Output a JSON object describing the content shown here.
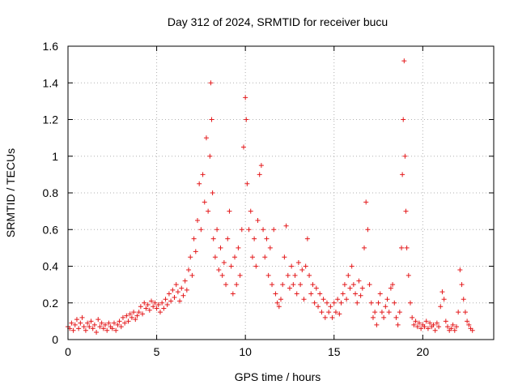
{
  "chart_data": {
    "type": "scatter",
    "title": "Day 312 of 2024, SRMTID for receiver bucu",
    "xlabel": "GPS time / hours",
    "ylabel": "SRMTID / TECUs",
    "xlim": [
      0,
      24
    ],
    "ylim": [
      0,
      1.6
    ],
    "x_ticks": [
      0,
      5,
      10,
      15,
      20
    ],
    "x_tick_labels": [
      "0",
      "5",
      "10",
      "15",
      "20"
    ],
    "y_ticks": [
      0,
      0.2,
      0.4,
      0.6,
      0.8,
      1,
      1.2,
      1.4,
      1.6
    ],
    "y_tick_labels": [
      "0",
      "0.2",
      "0.4",
      "0.6",
      "0.8",
      "1",
      "1.2",
      "1.4",
      "1.6"
    ],
    "grid": true,
    "marker": "+",
    "series": [
      {
        "name": "SRMTID",
        "color": "#e41a1c",
        "points": [
          [
            0.0,
            0.07
          ],
          [
            0.1,
            0.06
          ],
          [
            0.2,
            0.09
          ],
          [
            0.3,
            0.05
          ],
          [
            0.4,
            0.08
          ],
          [
            0.5,
            0.11
          ],
          [
            0.6,
            0.06
          ],
          [
            0.7,
            0.09
          ],
          [
            0.8,
            0.12
          ],
          [
            0.9,
            0.07
          ],
          [
            1.0,
            0.05
          ],
          [
            1.1,
            0.09
          ],
          [
            1.2,
            0.07
          ],
          [
            1.3,
            0.1
          ],
          [
            1.4,
            0.06
          ],
          [
            1.5,
            0.08
          ],
          [
            1.6,
            0.04
          ],
          [
            1.7,
            0.11
          ],
          [
            1.8,
            0.07
          ],
          [
            1.9,
            0.09
          ],
          [
            2.0,
            0.06
          ],
          [
            2.1,
            0.08
          ],
          [
            2.2,
            0.05
          ],
          [
            2.3,
            0.09
          ],
          [
            2.4,
            0.07
          ],
          [
            2.5,
            0.06
          ],
          [
            2.6,
            0.09
          ],
          [
            2.7,
            0.05
          ],
          [
            2.8,
            0.08
          ],
          [
            2.9,
            0.1
          ],
          [
            3.0,
            0.07
          ],
          [
            3.1,
            0.12
          ],
          [
            3.2,
            0.09
          ],
          [
            3.3,
            0.13
          ],
          [
            3.4,
            0.1
          ],
          [
            3.5,
            0.14
          ],
          [
            3.6,
            0.12
          ],
          [
            3.7,
            0.15
          ],
          [
            3.8,
            0.11
          ],
          [
            3.9,
            0.13
          ],
          [
            4.0,
            0.15
          ],
          [
            4.1,
            0.18
          ],
          [
            4.2,
            0.14
          ],
          [
            4.3,
            0.2
          ],
          [
            4.4,
            0.17
          ],
          [
            4.5,
            0.19
          ],
          [
            4.6,
            0.16
          ],
          [
            4.7,
            0.21
          ],
          [
            4.8,
            0.18
          ],
          [
            4.9,
            0.2
          ],
          [
            5.0,
            0.17
          ],
          [
            5.1,
            0.19
          ],
          [
            5.2,
            0.15
          ],
          [
            5.3,
            0.2
          ],
          [
            5.4,
            0.17
          ],
          [
            5.5,
            0.22
          ],
          [
            5.6,
            0.19
          ],
          [
            5.7,
            0.25
          ],
          [
            5.8,
            0.21
          ],
          [
            5.9,
            0.27
          ],
          [
            6.0,
            0.23
          ],
          [
            6.1,
            0.3
          ],
          [
            6.2,
            0.26
          ],
          [
            6.3,
            0.21
          ],
          [
            6.4,
            0.28
          ],
          [
            6.5,
            0.24
          ],
          [
            6.6,
            0.32
          ],
          [
            6.7,
            0.27
          ],
          [
            6.8,
            0.38
          ],
          [
            6.9,
            0.45
          ],
          [
            7.0,
            0.35
          ],
          [
            7.1,
            0.55
          ],
          [
            7.2,
            0.48
          ],
          [
            7.3,
            0.65
          ],
          [
            7.4,
            0.85
          ],
          [
            7.5,
            0.6
          ],
          [
            7.6,
            0.9
          ],
          [
            7.7,
            0.75
          ],
          [
            7.8,
            1.1
          ],
          [
            7.9,
            0.7
          ],
          [
            8.0,
            1.0
          ],
          [
            8.05,
            1.4
          ],
          [
            8.1,
            1.2
          ],
          [
            8.15,
            0.8
          ],
          [
            8.2,
            0.55
          ],
          [
            8.3,
            0.45
          ],
          [
            8.4,
            0.6
          ],
          [
            8.5,
            0.38
          ],
          [
            8.6,
            0.5
          ],
          [
            8.7,
            0.35
          ],
          [
            8.8,
            0.42
          ],
          [
            8.9,
            0.3
          ],
          [
            9.0,
            0.55
          ],
          [
            9.1,
            0.7
          ],
          [
            9.2,
            0.4
          ],
          [
            9.3,
            0.25
          ],
          [
            9.4,
            0.45
          ],
          [
            9.5,
            0.3
          ],
          [
            9.6,
            0.5
          ],
          [
            9.7,
            0.35
          ],
          [
            9.8,
            0.6
          ],
          [
            9.9,
            1.05
          ],
          [
            10.0,
            1.32
          ],
          [
            10.05,
            1.2
          ],
          [
            10.1,
            0.85
          ],
          [
            10.2,
            0.6
          ],
          [
            10.3,
            0.7
          ],
          [
            10.4,
            0.45
          ],
          [
            10.5,
            0.55
          ],
          [
            10.6,
            0.4
          ],
          [
            10.7,
            0.65
          ],
          [
            10.8,
            0.9
          ],
          [
            10.9,
            0.95
          ],
          [
            11.0,
            0.6
          ],
          [
            11.1,
            0.45
          ],
          [
            11.2,
            0.55
          ],
          [
            11.3,
            0.35
          ],
          [
            11.4,
            0.5
          ],
          [
            11.5,
            0.3
          ],
          [
            11.6,
            0.6
          ],
          [
            11.7,
            0.25
          ],
          [
            11.8,
            0.2
          ],
          [
            11.9,
            0.18
          ],
          [
            12.0,
            0.22
          ],
          [
            12.1,
            0.3
          ],
          [
            12.2,
            0.45
          ],
          [
            12.3,
            0.62
          ],
          [
            12.4,
            0.35
          ],
          [
            12.5,
            0.28
          ],
          [
            12.6,
            0.4
          ],
          [
            12.7,
            0.3
          ],
          [
            12.8,
            0.35
          ],
          [
            12.9,
            0.25
          ],
          [
            13.0,
            0.42
          ],
          [
            13.1,
            0.3
          ],
          [
            13.2,
            0.38
          ],
          [
            13.3,
            0.22
          ],
          [
            13.4,
            0.4
          ],
          [
            13.5,
            0.55
          ],
          [
            13.6,
            0.35
          ],
          [
            13.7,
            0.25
          ],
          [
            13.8,
            0.3
          ],
          [
            13.9,
            0.2
          ],
          [
            14.0,
            0.28
          ],
          [
            14.1,
            0.18
          ],
          [
            14.2,
            0.25
          ],
          [
            14.3,
            0.15
          ],
          [
            14.4,
            0.22
          ],
          [
            14.5,
            0.12
          ],
          [
            14.6,
            0.2
          ],
          [
            14.7,
            0.15
          ],
          [
            14.8,
            0.18
          ],
          [
            14.9,
            0.12
          ],
          [
            15.0,
            0.2
          ],
          [
            15.1,
            0.15
          ],
          [
            15.2,
            0.22
          ],
          [
            15.3,
            0.14
          ],
          [
            15.4,
            0.2
          ],
          [
            15.5,
            0.25
          ],
          [
            15.6,
            0.3
          ],
          [
            15.7,
            0.22
          ],
          [
            15.8,
            0.35
          ],
          [
            15.9,
            0.28
          ],
          [
            16.0,
            0.4
          ],
          [
            16.1,
            0.3
          ],
          [
            16.2,
            0.25
          ],
          [
            16.3,
            0.2
          ],
          [
            16.4,
            0.32
          ],
          [
            16.5,
            0.24
          ],
          [
            16.6,
            0.28
          ],
          [
            16.7,
            0.5
          ],
          [
            16.8,
            0.75
          ],
          [
            16.9,
            0.6
          ],
          [
            17.0,
            0.3
          ],
          [
            17.1,
            0.2
          ],
          [
            17.2,
            0.12
          ],
          [
            17.3,
            0.15
          ],
          [
            17.4,
            0.08
          ],
          [
            17.5,
            0.2
          ],
          [
            17.6,
            0.25
          ],
          [
            17.7,
            0.15
          ],
          [
            17.8,
            0.12
          ],
          [
            17.9,
            0.18
          ],
          [
            18.0,
            0.22
          ],
          [
            18.1,
            0.15
          ],
          [
            18.2,
            0.28
          ],
          [
            18.3,
            0.3
          ],
          [
            18.4,
            0.2
          ],
          [
            18.5,
            0.12
          ],
          [
            18.6,
            0.08
          ],
          [
            18.7,
            0.15
          ],
          [
            18.8,
            0.5
          ],
          [
            18.85,
            0.9
          ],
          [
            18.9,
            1.2
          ],
          [
            18.95,
            1.52
          ],
          [
            19.0,
            1.0
          ],
          [
            19.05,
            0.7
          ],
          [
            19.1,
            0.5
          ],
          [
            19.2,
            0.35
          ],
          [
            19.3,
            0.2
          ],
          [
            19.4,
            0.12
          ],
          [
            19.5,
            0.08
          ],
          [
            19.6,
            0.1
          ],
          [
            19.7,
            0.07
          ],
          [
            19.8,
            0.09
          ],
          [
            19.9,
            0.06
          ],
          [
            20.0,
            0.08
          ],
          [
            20.1,
            0.07
          ],
          [
            20.2,
            0.1
          ],
          [
            20.3,
            0.06
          ],
          [
            20.4,
            0.09
          ],
          [
            20.5,
            0.07
          ],
          [
            20.6,
            0.08
          ],
          [
            20.7,
            0.05
          ],
          [
            20.8,
            0.09
          ],
          [
            20.9,
            0.07
          ],
          [
            21.0,
            0.18
          ],
          [
            21.1,
            0.26
          ],
          [
            21.2,
            0.22
          ],
          [
            21.3,
            0.1
          ],
          [
            21.4,
            0.07
          ],
          [
            21.5,
            0.05
          ],
          [
            21.6,
            0.06
          ],
          [
            21.7,
            0.08
          ],
          [
            21.8,
            0.05
          ],
          [
            21.9,
            0.07
          ],
          [
            22.0,
            0.15
          ],
          [
            22.1,
            0.38
          ],
          [
            22.2,
            0.3
          ],
          [
            22.3,
            0.22
          ],
          [
            22.4,
            0.15
          ],
          [
            22.5,
            0.1
          ],
          [
            22.6,
            0.08
          ],
          [
            22.7,
            0.06
          ],
          [
            22.8,
            0.05
          ]
        ]
      }
    ]
  }
}
